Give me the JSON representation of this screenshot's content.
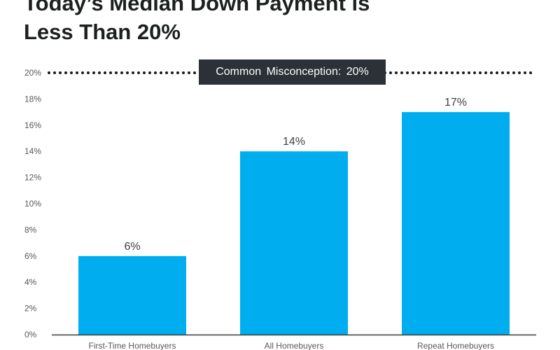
{
  "title": {
    "line1": "Today’s Median Down Payment is",
    "line2": "Less Than 20%"
  },
  "callout": "Common Misconception: 20%",
  "colors": {
    "bar": "#00aeef",
    "title": "#1d2020",
    "callout_bg": "#2b3136",
    "axis_text": "#595959",
    "reference_line": "#1a1a1a"
  },
  "chart_data": {
    "type": "bar",
    "categories": [
      "First-Time Homebuyers",
      "All Homebuyers",
      "Repeat Homebuyers"
    ],
    "values": [
      6,
      14,
      17
    ],
    "data_labels": [
      "6%",
      "14%",
      "17%"
    ],
    "ylim": [
      0,
      20
    ],
    "yticks": [
      0,
      2,
      4,
      6,
      8,
      10,
      12,
      14,
      16,
      18,
      20
    ],
    "ytick_labels": [
      "0%",
      "2%",
      "4%",
      "6%",
      "8%",
      "10%",
      "12%",
      "14%",
      "16%",
      "18%",
      "20%"
    ],
    "reference_line": {
      "value": 20,
      "style": "dotted"
    },
    "grid": false,
    "legend": "none"
  }
}
